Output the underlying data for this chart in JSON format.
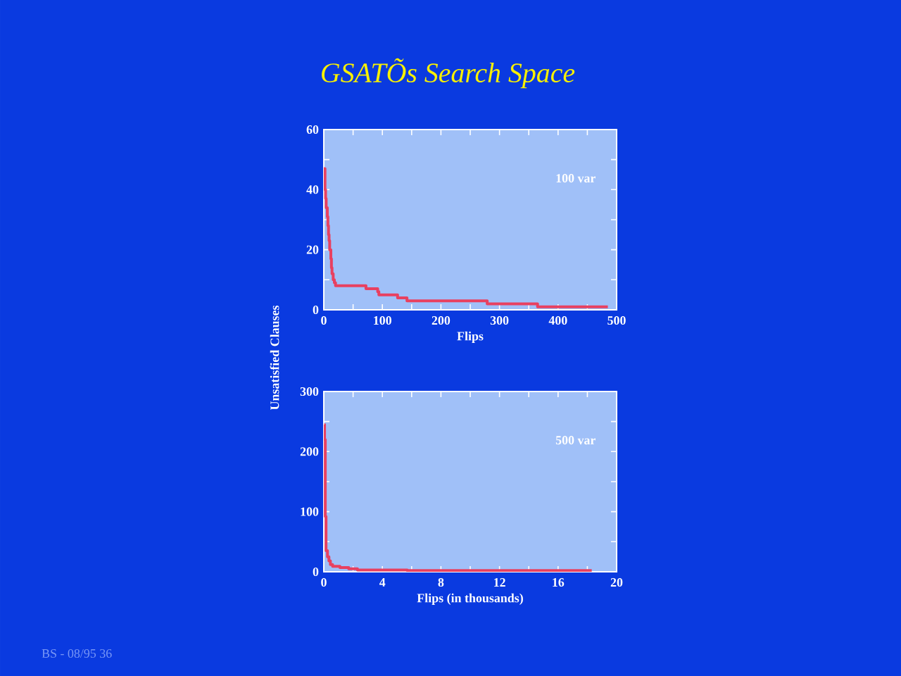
{
  "chart_data": [
    {
      "type": "step",
      "title": "GSATÕs Search Space",
      "xlabel": "Flips",
      "ylabel": "Unsatisfied Clauses",
      "annotations": [
        "100 var",
        "BS - 08/95 36"
      ],
      "xlim": [
        0,
        500
      ],
      "ylim": [
        0,
        60
      ],
      "xticks": [
        0,
        {
          "value": 50,
          "label": null
        },
        100,
        {
          "value": 150,
          "label": null
        },
        200,
        {
          "value": 250,
          "label": null
        },
        300,
        {
          "value": 350,
          "label": null
        },
        400,
        {
          "value": 450,
          "label": null
        },
        500
      ],
      "yticks": [
        0,
        {
          "value": 10,
          "label": null
        },
        20,
        {
          "value": 30,
          "label": null
        },
        40,
        {
          "value": 50,
          "label": null
        },
        60
      ],
      "series": [
        {
          "color": "#e84060",
          "x": [
            0,
            2,
            3,
            4,
            6,
            7,
            8,
            9,
            10,
            12,
            13,
            14,
            16,
            18,
            20,
            72,
            92,
            94,
            126,
            142,
            279,
            365,
            485
          ],
          "values": [
            47,
            40,
            37,
            34,
            31,
            28,
            25,
            23,
            20,
            17,
            14,
            12,
            10,
            9,
            8,
            7,
            6,
            5,
            4,
            3,
            2,
            1,
            1
          ]
        }
      ]
    },
    {
      "type": "step",
      "xlabel": "Flips (in thousands)",
      "annotations": [
        "500 var"
      ],
      "xlim": [
        0,
        20
      ],
      "ylim": [
        0,
        300
      ],
      "xticks": [
        0,
        {
          "value": 2,
          "label": null
        },
        4,
        {
          "value": 6,
          "label": null
        },
        8,
        {
          "value": 10,
          "label": null
        },
        12,
        {
          "value": 14,
          "label": null
        },
        16,
        {
          "value": 18,
          "label": null
        },
        20
      ],
      "yticks": [
        0,
        {
          "value": 50,
          "label": null
        },
        100,
        {
          "value": 150,
          "label": null
        },
        200,
        {
          "value": 250,
          "label": null
        },
        300
      ],
      "series": [
        {
          "color": "#e84060",
          "x": [
            0.03,
            0.05,
            0.1,
            0.15,
            0.25,
            0.35,
            0.45,
            0.6,
            1.1,
            1.7,
            2.3,
            5.7,
            18.3
          ],
          "values": [
            245,
            220,
            92,
            35,
            25,
            18,
            12,
            9,
            7,
            5,
            3,
            2,
            2
          ]
        }
      ]
    }
  ]
}
